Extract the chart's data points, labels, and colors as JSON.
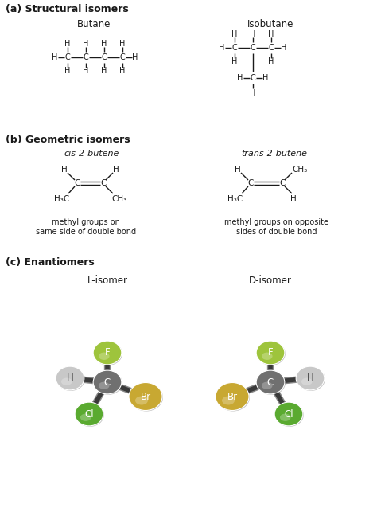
{
  "bg_color": "#ffffff",
  "section_a_title": "(a) Structural isomers",
  "section_b_title": "(b) Geometric isomers",
  "section_c_title": "(c) Enantiomers",
  "butane_title": "Butane",
  "isobutane_title": "Isobutane",
  "cis_title": "cis-2-butene",
  "trans_title": "trans-2-butene",
  "l_isomer_title": "L-isomer",
  "d_isomer_title": "D-isomer",
  "cis_caption": "methyl groups on\nsame side of double bond",
  "trans_caption": "methyl groups on opposite\nsides of double bond",
  "atom_colors": {
    "F": "#9ec43c",
    "C": "#707070",
    "H": "#c8c8c8",
    "Br": "#c8a832",
    "Cl": "#5aaa30"
  },
  "bond_color": "#3a3a3a",
  "text_color": "#1a1a1a",
  "figw": 4.74,
  "figh": 6.38,
  "dpi": 100
}
